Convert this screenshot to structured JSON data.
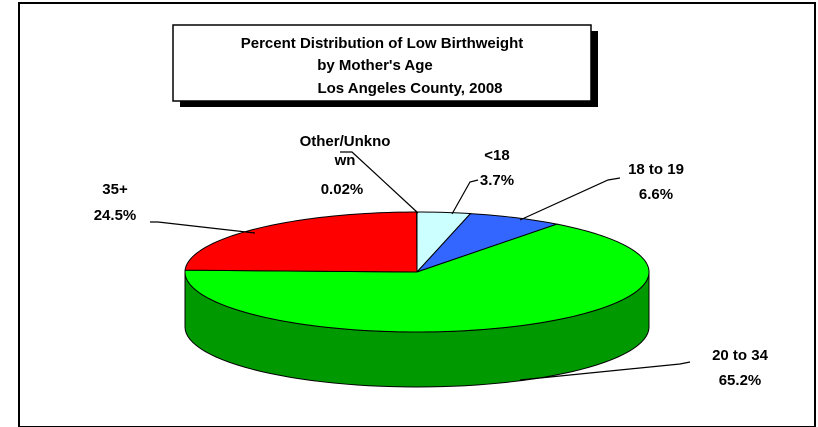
{
  "chart_data": {
    "type": "pie3d",
    "title": [
      "Percent Distribution of Low Birthweight",
      "by Mother's Age",
      "Los Angeles County, 2008"
    ],
    "categories": [
      "<18",
      "18 to 19",
      "20 to 34",
      "35+",
      "Other/Unknown"
    ],
    "values": [
      3.7,
      6.6,
      65.2,
      24.5,
      0.02
    ],
    "value_labels": [
      "3.7%",
      "6.6%",
      "65.2%",
      "24.5%",
      "0.02%"
    ],
    "colors": [
      "#ccffff",
      "#3366ff",
      "#00ff00",
      "#ff0000",
      "#999999"
    ]
  }
}
